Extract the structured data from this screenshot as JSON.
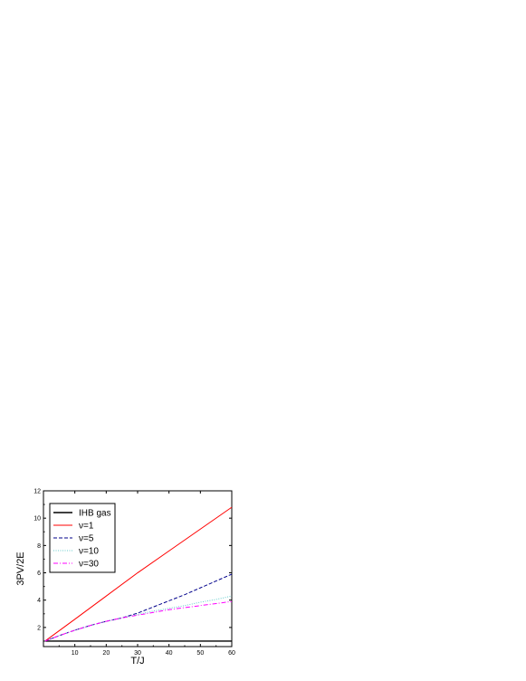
{
  "chart_data": {
    "type": "line",
    "title": "",
    "xlabel": "T/J",
    "ylabel": "3PV/2E",
    "xlim": [
      0,
      60
    ],
    "ylim": [
      0.6,
      12
    ],
    "xticks": [
      10,
      20,
      30,
      40,
      50,
      60
    ],
    "yticks": [
      2,
      4,
      6,
      8,
      10,
      12
    ],
    "grid": false,
    "legend_position": "top-left",
    "series": [
      {
        "name": "IHB gas",
        "color": "#000000",
        "style": "solid",
        "x": [
          0.5,
          60
        ],
        "y": [
          1.0,
          1.0
        ]
      },
      {
        "name": "ν=1",
        "color": "#ff0000",
        "style": "solid",
        "x": [
          0.5,
          10,
          20,
          30,
          40,
          50,
          60
        ],
        "y": [
          1.0,
          2.6,
          4.3,
          6.0,
          7.6,
          9.2,
          10.8
        ]
      },
      {
        "name": "ν=5",
        "color": "#00008b",
        "style": "dashed",
        "x": [
          0.5,
          5,
          10,
          15,
          20,
          25,
          30,
          35,
          40,
          45,
          50,
          55,
          60
        ],
        "y": [
          1.0,
          1.4,
          1.8,
          2.15,
          2.45,
          2.7,
          3.05,
          3.5,
          3.95,
          4.4,
          4.9,
          5.4,
          5.9
        ]
      },
      {
        "name": "ν=10",
        "color": "#66cccc",
        "style": "dotted",
        "x": [
          0.5,
          5,
          10,
          15,
          20,
          25,
          30,
          35,
          40,
          45,
          50,
          55,
          60
        ],
        "y": [
          1.0,
          1.4,
          1.8,
          2.15,
          2.45,
          2.7,
          2.95,
          3.2,
          3.4,
          3.6,
          3.85,
          4.05,
          4.3
        ]
      },
      {
        "name": "ν=30",
        "color": "#ff00ff",
        "style": "dashdot",
        "x": [
          0.5,
          5,
          10,
          15,
          20,
          25,
          30,
          35,
          40,
          45,
          50,
          55,
          60
        ],
        "y": [
          1.0,
          1.4,
          1.8,
          2.15,
          2.45,
          2.7,
          2.9,
          3.1,
          3.3,
          3.45,
          3.6,
          3.75,
          3.9
        ]
      }
    ]
  }
}
